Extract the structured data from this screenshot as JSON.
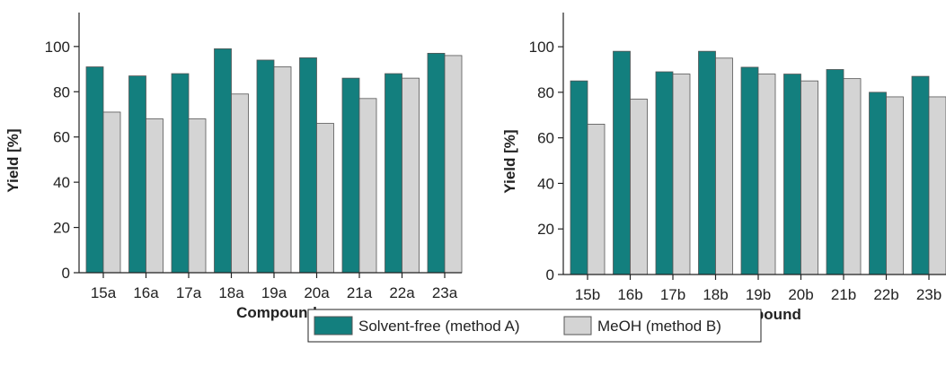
{
  "colors": {
    "series_a": "#137F7E",
    "series_b": "#D4D4D4",
    "bar_stroke": "#555555",
    "axis": "#222222"
  },
  "legend": {
    "position": "bottom-center",
    "items": [
      "Solvent-free (method A)",
      "MeOH (method B)"
    ]
  },
  "chart_data": [
    {
      "type": "bar",
      "xlabel": "Compound",
      "ylabel": "Yield [%]",
      "ylim": [
        0,
        115
      ],
      "yticks": [
        0,
        20,
        40,
        60,
        80,
        100
      ],
      "grid": false,
      "categories": [
        "15a",
        "16a",
        "17a",
        "18a",
        "19a",
        "20a",
        "21a",
        "22a",
        "23a"
      ],
      "series": [
        {
          "name": "Solvent-free (method A)",
          "values": [
            91,
            87,
            88,
            99,
            94,
            95,
            86,
            88,
            97
          ]
        },
        {
          "name": "MeOH (method B)",
          "values": [
            71,
            68,
            68,
            79,
            91,
            66,
            77,
            86,
            96
          ]
        }
      ]
    },
    {
      "type": "bar",
      "xlabel": "Compound",
      "ylabel": "Yield [%]",
      "ylim": [
        0,
        115
      ],
      "yticks": [
        0,
        20,
        40,
        60,
        80,
        100
      ],
      "grid": false,
      "categories": [
        "15b",
        "16b",
        "17b",
        "18b",
        "19b",
        "20b",
        "21b",
        "22b",
        "23b"
      ],
      "series": [
        {
          "name": "Solvent-free (method A)",
          "values": [
            85,
            98,
            89,
            98,
            91,
            88,
            90,
            80,
            87
          ]
        },
        {
          "name": "MeOH (method B)",
          "values": [
            66,
            77,
            88,
            95,
            88,
            85,
            86,
            78,
            78
          ]
        }
      ]
    }
  ]
}
